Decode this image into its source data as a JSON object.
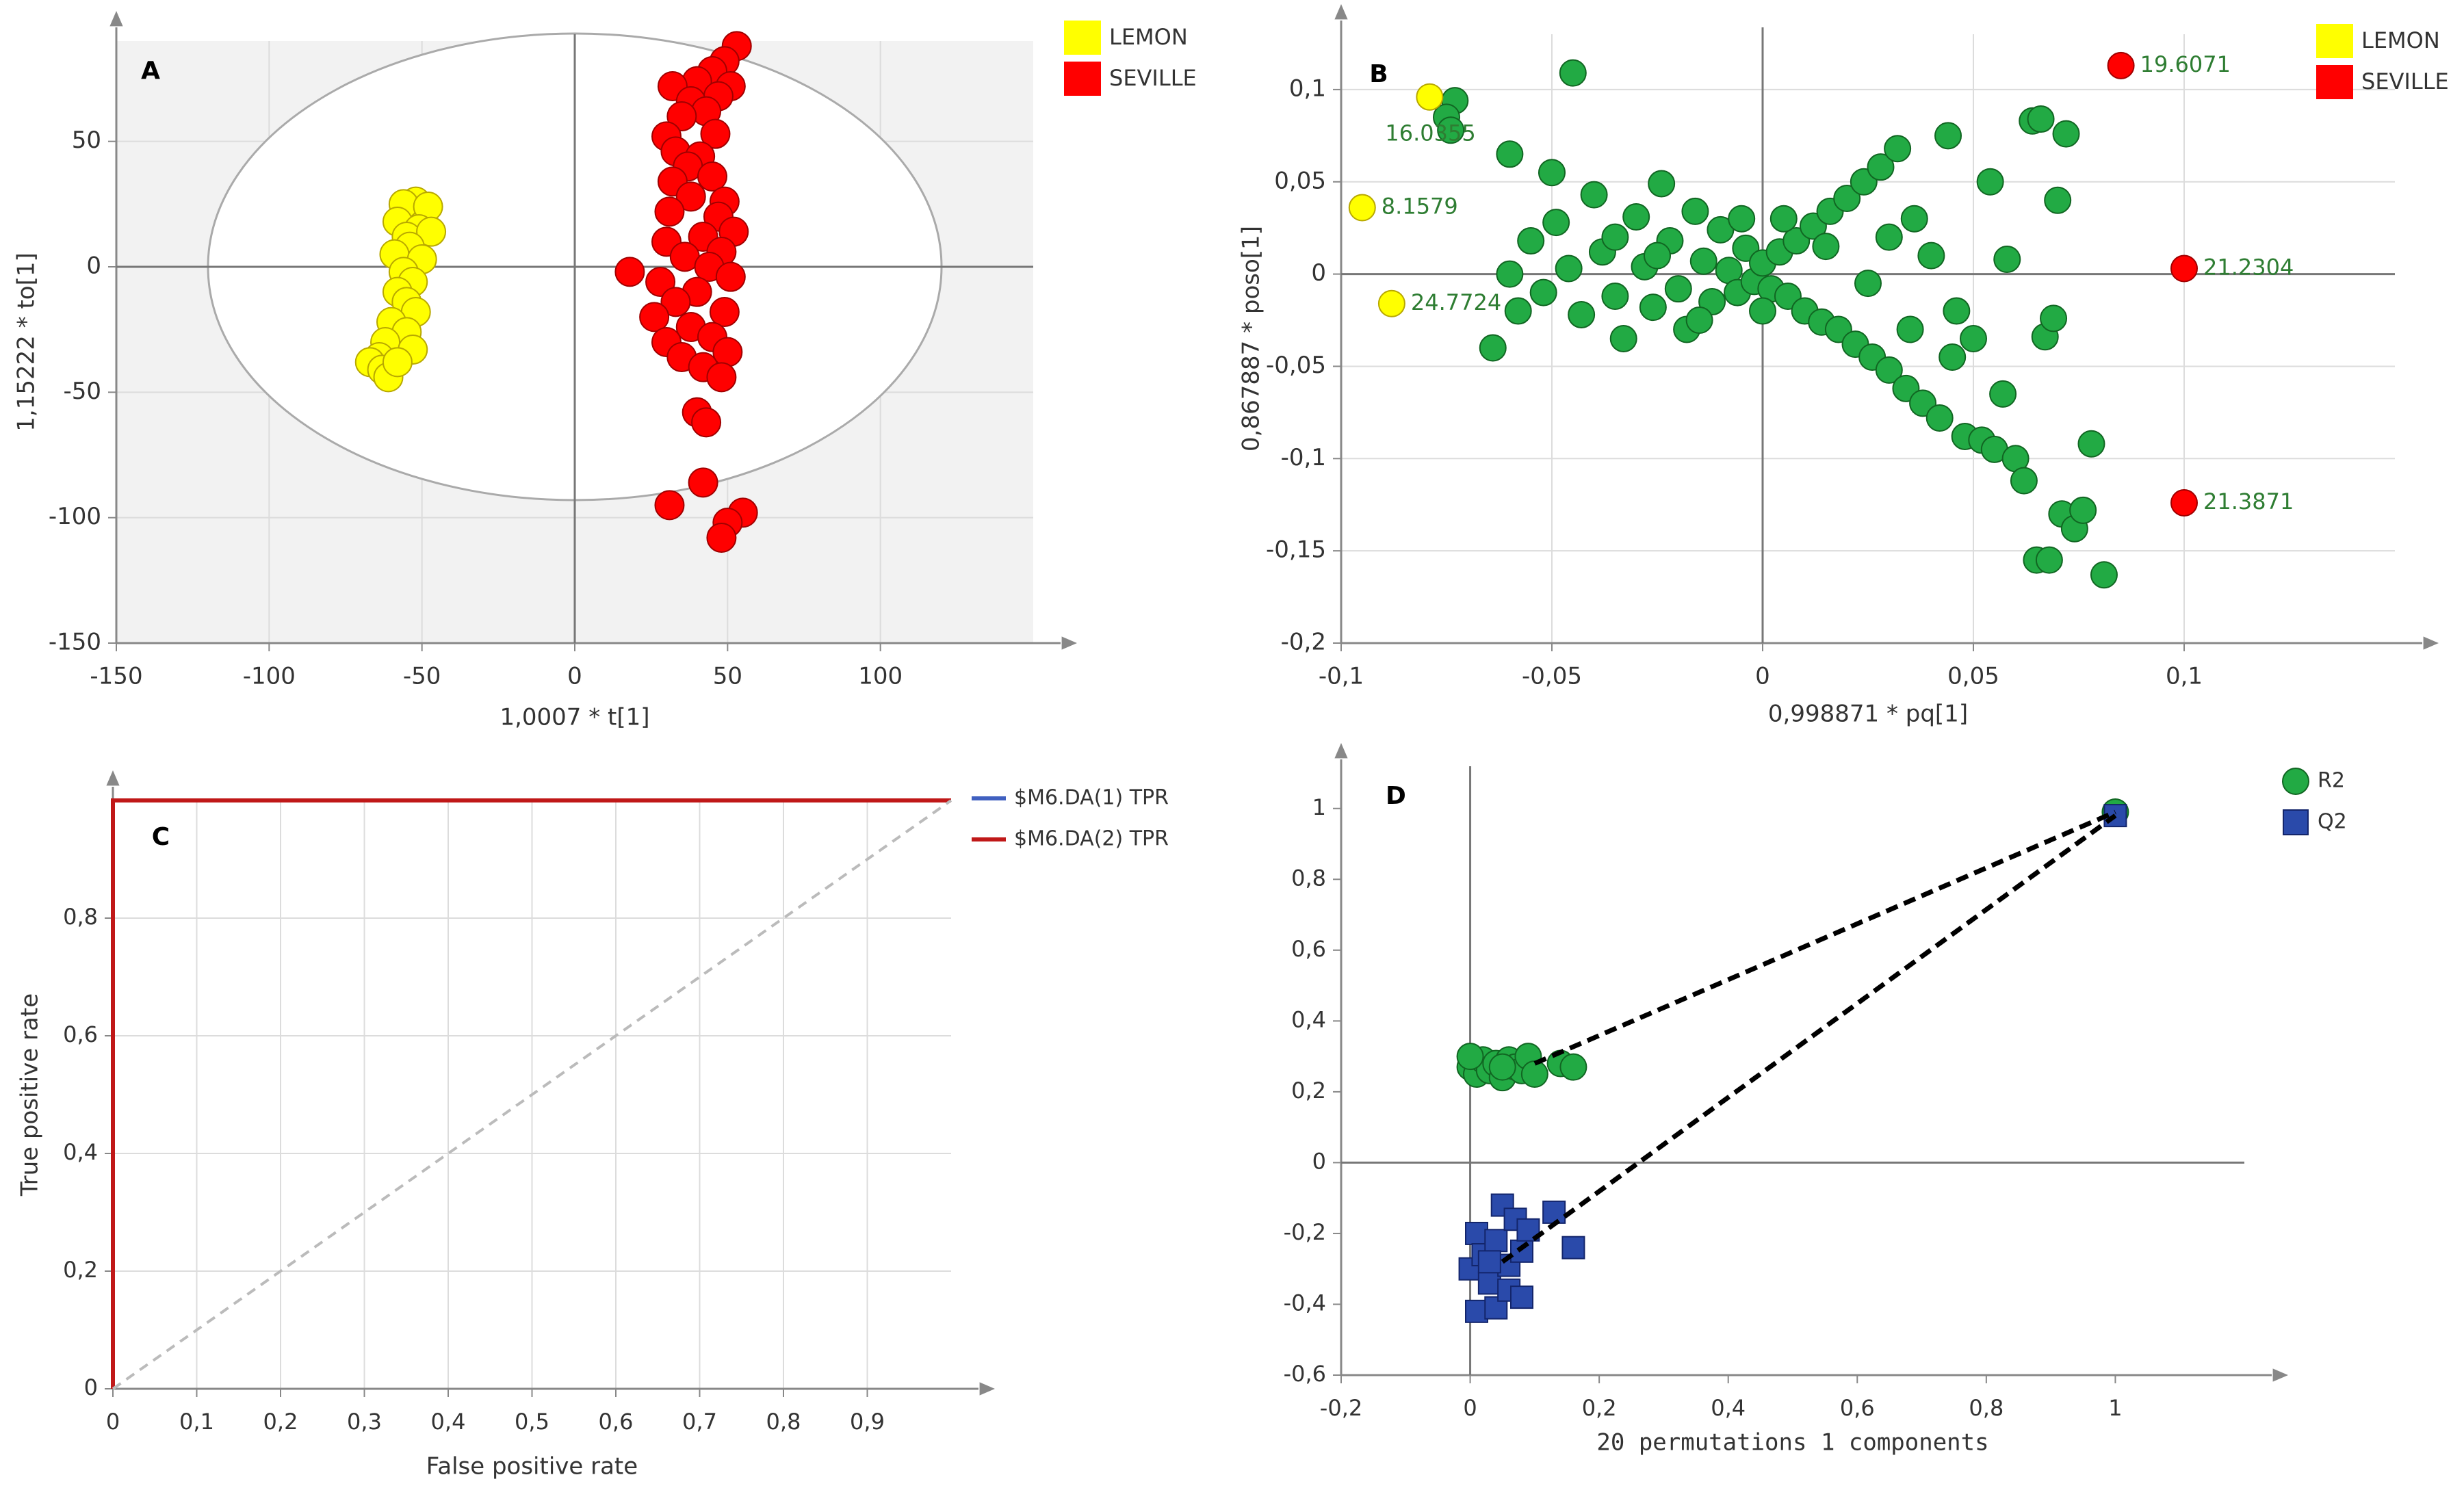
{
  "chart_data": [
    {
      "panel_letter": "A",
      "type": "scatter",
      "xlabel": "1,0007 * t[1]",
      "ylabel": "1,15222 * to[1]",
      "xlim": [
        -150,
        150
      ],
      "ylim": [
        -150,
        90
      ],
      "xticks": [
        "-150",
        "-100",
        "-50",
        "0",
        "50",
        "100"
      ],
      "xtick_values": [
        -150,
        -100,
        -50,
        0,
        50,
        100
      ],
      "yticks": [
        "-150",
        "-100",
        "-50",
        "0",
        "50"
      ],
      "ytick_values": [
        -150,
        -100,
        -50,
        0,
        50
      ],
      "grid": true,
      "ellipse": {
        "cx": 0,
        "cy": 0,
        "rx": 120,
        "ry": 93
      },
      "legend": [
        {
          "label": "LEMON",
          "color": "#ffff00"
        },
        {
          "label": "SEVILLE",
          "color": "#ff0000"
        }
      ],
      "series": [
        {
          "name": "LEMON",
          "color": "#ffff00",
          "points": [
            [
              -52,
              26
            ],
            [
              -56,
              25
            ],
            [
              -48,
              24
            ],
            [
              -58,
              18
            ],
            [
              -51,
              15
            ],
            [
              -55,
              12
            ],
            [
              -47,
              14
            ],
            [
              -54,
              8
            ],
            [
              -59,
              5
            ],
            [
              -50,
              3
            ],
            [
              -56,
              -2
            ],
            [
              -53,
              -6
            ],
            [
              -58,
              -10
            ],
            [
              -55,
              -14
            ],
            [
              -52,
              -18
            ],
            [
              -60,
              -22
            ],
            [
              -55,
              -26
            ],
            [
              -62,
              -30
            ],
            [
              -53,
              -33
            ],
            [
              -64,
              -36
            ],
            [
              -67,
              -38
            ],
            [
              -63,
              -41
            ],
            [
              -61,
              -44
            ],
            [
              -58,
              -38
            ]
          ]
        },
        {
          "name": "SEVILLE",
          "color": "#ff0000",
          "points": [
            [
              53,
              88
            ],
            [
              49,
              82
            ],
            [
              45,
              78
            ],
            [
              40,
              74
            ],
            [
              32,
              72
            ],
            [
              51,
              72
            ],
            [
              47,
              68
            ],
            [
              38,
              66
            ],
            [
              43,
              62
            ],
            [
              35,
              60
            ],
            [
              30,
              52
            ],
            [
              46,
              53
            ],
            [
              33,
              46
            ],
            [
              41,
              44
            ],
            [
              37,
              40
            ],
            [
              45,
              36
            ],
            [
              32,
              34
            ],
            [
              38,
              28
            ],
            [
              49,
              26
            ],
            [
              31,
              22
            ],
            [
              47,
              20
            ],
            [
              52,
              14
            ],
            [
              42,
              12
            ],
            [
              30,
              10
            ],
            [
              48,
              6
            ],
            [
              36,
              4
            ],
            [
              18,
              -2
            ],
            [
              44,
              0
            ],
            [
              51,
              -4
            ],
            [
              28,
              -6
            ],
            [
              40,
              -10
            ],
            [
              33,
              -14
            ],
            [
              49,
              -18
            ],
            [
              26,
              -20
            ],
            [
              38,
              -24
            ],
            [
              45,
              -28
            ],
            [
              30,
              -30
            ],
            [
              50,
              -34
            ],
            [
              35,
              -36
            ],
            [
              42,
              -40
            ],
            [
              48,
              -44
            ],
            [
              40,
              -58
            ],
            [
              43,
              -62
            ],
            [
              42,
              -86
            ],
            [
              31,
              -95
            ],
            [
              55,
              -98
            ],
            [
              50,
              -102
            ],
            [
              48,
              -108
            ]
          ]
        }
      ]
    },
    {
      "panel_letter": "B",
      "type": "scatter",
      "xlabel": "0,998871 * pq[1]",
      "ylabel": "0,867887 * poso[1]",
      "xlim": [
        -0.1,
        0.15
      ],
      "ylim": [
        -0.2,
        0.13
      ],
      "xticks": [
        "-0,1",
        "-0,05",
        "0",
        "0,05",
        "0,1"
      ],
      "xtick_values": [
        -0.1,
        -0.05,
        0,
        0.05,
        0.1
      ],
      "yticks": [
        "-0,2",
        "-0,15",
        "-0,1",
        "-0,05",
        "0",
        "0,05",
        "0,1"
      ],
      "ytick_values": [
        -0.2,
        -0.15,
        -0.1,
        -0.05,
        0,
        0.05,
        0.1
      ],
      "grid": true,
      "legend": [
        {
          "label": "LEMON",
          "color": "#ffff00"
        },
        {
          "label": "SEVILLE",
          "color": "#ff0000"
        }
      ],
      "highlighted_points": [
        {
          "x": -0.079,
          "y": 0.096,
          "color": "#ffff00",
          "label": "16.0355"
        },
        {
          "x": -0.095,
          "y": 0.036,
          "color": "#ffff00",
          "label": "8.1579"
        },
        {
          "x": -0.088,
          "y": -0.016,
          "color": "#ffff00",
          "label": "24.7724"
        },
        {
          "x": 0.085,
          "y": 0.113,
          "color": "#ff0000",
          "label": "19.6071"
        },
        {
          "x": 0.1,
          "y": 0.003,
          "color": "#ff0000",
          "label": "21.2304"
        },
        {
          "x": 0.1,
          "y": -0.124,
          "color": "#ff0000",
          "label": "21.3871"
        }
      ],
      "background_series": {
        "name": "loadings",
        "color": "#22aa44",
        "points": [
          [
            -0.073,
            0.094
          ],
          [
            -0.075,
            0.085
          ],
          [
            -0.074,
            0.078
          ],
          [
            -0.045,
            0.109
          ],
          [
            -0.06,
            0.065
          ],
          [
            -0.05,
            0.055
          ],
          [
            -0.064,
            -0.04
          ],
          [
            -0.06,
            0.0
          ],
          [
            -0.058,
            -0.02
          ],
          [
            -0.055,
            0.018
          ],
          [
            -0.052,
            -0.01
          ],
          [
            -0.049,
            0.028
          ],
          [
            -0.046,
            0.003
          ],
          [
            -0.043,
            -0.022
          ],
          [
            -0.04,
            0.043
          ],
          [
            -0.038,
            0.012
          ],
          [
            -0.035,
            -0.012
          ],
          [
            -0.033,
            -0.035
          ],
          [
            -0.03,
            0.031
          ],
          [
            -0.028,
            0.004
          ],
          [
            -0.026,
            -0.018
          ],
          [
            -0.024,
            0.049
          ],
          [
            -0.022,
            0.018
          ],
          [
            -0.02,
            -0.008
          ],
          [
            -0.018,
            -0.03
          ],
          [
            -0.016,
            0.034
          ],
          [
            -0.014,
            0.007
          ],
          [
            -0.012,
            -0.015
          ],
          [
            -0.01,
            0.024
          ],
          [
            -0.008,
            0.002
          ],
          [
            -0.006,
            -0.01
          ],
          [
            -0.004,
            0.014
          ],
          [
            -0.002,
            -0.004
          ],
          [
            0.0,
            0.006
          ],
          [
            0.002,
            -0.008
          ],
          [
            0.004,
            0.012
          ],
          [
            0.006,
            -0.012
          ],
          [
            0.008,
            0.018
          ],
          [
            0.01,
            -0.02
          ],
          [
            0.012,
            0.026
          ],
          [
            0.014,
            -0.026
          ],
          [
            0.016,
            0.034
          ],
          [
            0.018,
            -0.03
          ],
          [
            0.02,
            0.041
          ],
          [
            0.022,
            -0.038
          ],
          [
            0.024,
            0.05
          ],
          [
            0.026,
            -0.045
          ],
          [
            0.028,
            0.058
          ],
          [
            0.03,
            -0.052
          ],
          [
            0.032,
            0.068
          ],
          [
            0.034,
            -0.062
          ],
          [
            0.036,
            0.03
          ],
          [
            0.038,
            -0.07
          ],
          [
            0.04,
            0.01
          ],
          [
            0.042,
            -0.078
          ],
          [
            0.044,
            0.075
          ],
          [
            0.046,
            -0.02
          ],
          [
            0.048,
            -0.088
          ],
          [
            0.05,
            -0.035
          ],
          [
            0.052,
            -0.09
          ],
          [
            0.054,
            0.05
          ],
          [
            0.055,
            -0.095
          ],
          [
            0.057,
            -0.065
          ],
          [
            0.058,
            0.008
          ],
          [
            0.06,
            -0.1
          ],
          [
            0.062,
            -0.112
          ],
          [
            0.064,
            0.083
          ],
          [
            0.065,
            -0.155
          ],
          [
            0.066,
            0.084
          ],
          [
            0.067,
            -0.034
          ],
          [
            0.068,
            -0.155
          ],
          [
            0.069,
            -0.024
          ],
          [
            0.07,
            0.04
          ],
          [
            0.071,
            -0.13
          ],
          [
            0.072,
            0.076
          ],
          [
            0.074,
            -0.138
          ],
          [
            0.076,
            -0.128
          ],
          [
            0.078,
            -0.092
          ],
          [
            0.081,
            -0.163
          ],
          [
            0.0,
            -0.02
          ],
          [
            -0.005,
            0.03
          ],
          [
            0.005,
            0.03
          ],
          [
            -0.015,
            -0.025
          ],
          [
            0.015,
            0.015
          ],
          [
            0.025,
            -0.005
          ],
          [
            -0.025,
            0.01
          ],
          [
            0.035,
            -0.03
          ],
          [
            -0.035,
            0.02
          ],
          [
            0.045,
            -0.045
          ],
          [
            0.03,
            0.02
          ]
        ]
      }
    },
    {
      "panel_letter": "C",
      "type": "line",
      "xlabel": "False positive rate",
      "ylabel": "True positive rate",
      "xlim": [
        0,
        1
      ],
      "ylim": [
        0,
        1
      ],
      "xticks": [
        "0",
        "0,1",
        "0,2",
        "0,3",
        "0,4",
        "0,5",
        "0,6",
        "0,7",
        "0,8",
        "0,9"
      ],
      "xtick_values": [
        0,
        0.1,
        0.2,
        0.3,
        0.4,
        0.5,
        0.6,
        0.7,
        0.8,
        0.9
      ],
      "yticks": [
        "0",
        "0,2",
        "0,4",
        "0,6",
        "0,8"
      ],
      "ytick_values": [
        0,
        0.2,
        0.4,
        0.6,
        0.8
      ],
      "grid": true,
      "legend": [
        {
          "label": "$M6.DA(1) TPR",
          "color": "#4060c0"
        },
        {
          "label": "$M6.DA(2) TPR",
          "color": "#c01818"
        }
      ],
      "series": [
        {
          "name": "$M6.DA(1) TPR",
          "color": "#4060c0",
          "points": [
            [
              0,
              0
            ],
            [
              0,
              1
            ],
            [
              1,
              1
            ]
          ]
        },
        {
          "name": "$M6.DA(2) TPR",
          "color": "#c01818",
          "points": [
            [
              0,
              0
            ],
            [
              0,
              1
            ],
            [
              1,
              1
            ]
          ]
        },
        {
          "name": "reference",
          "color": "#bbbbbb",
          "dashed": true,
          "points": [
            [
              0,
              0
            ],
            [
              1,
              1
            ]
          ]
        }
      ]
    },
    {
      "panel_letter": "D",
      "type": "scatter",
      "xlabel": "20 permutations 1 components",
      "xlim": [
        -0.2,
        1.2
      ],
      "ylim": [
        -0.6,
        1.1
      ],
      "xticks": [
        "-0,2",
        "0",
        "0,2",
        "0,4",
        "0,6",
        "0,8",
        "1"
      ],
      "xtick_values": [
        -0.2,
        0,
        0.2,
        0.4,
        0.6,
        0.8,
        1
      ],
      "yticks": [
        "-0,6",
        "-0,4",
        "-0,2",
        "0",
        "0,2",
        "0,4",
        "0,6",
        "0,8",
        "1"
      ],
      "ytick_values": [
        -0.6,
        -0.4,
        -0.2,
        0,
        0.2,
        0.4,
        0.6,
        0.8,
        1
      ],
      "grid": false,
      "legend": [
        {
          "label": "R2",
          "color": "#22aa44",
          "marker": "circle"
        },
        {
          "label": "Q2",
          "color": "#2a4aaa",
          "marker": "square"
        }
      ],
      "series": [
        {
          "name": "R2",
          "color": "#22aa44",
          "marker": "circle",
          "points": [
            [
              0.0,
              0.27
            ],
            [
              0.01,
              0.25
            ],
            [
              0.02,
              0.29
            ],
            [
              0.03,
              0.26
            ],
            [
              0.04,
              0.28
            ],
            [
              0.05,
              0.24
            ],
            [
              0.06,
              0.29
            ],
            [
              0.07,
              0.27
            ],
            [
              0.08,
              0.26
            ],
            [
              0.09,
              0.3
            ],
            [
              0.1,
              0.25
            ],
            [
              0.0,
              0.3
            ],
            [
              0.05,
              0.27
            ],
            [
              0.14,
              0.28
            ],
            [
              0.16,
              0.27
            ],
            [
              1.0,
              0.99
            ]
          ]
        },
        {
          "name": "Q2",
          "color": "#2a4aaa",
          "marker": "square",
          "points": [
            [
              0.0,
              -0.3
            ],
            [
              0.01,
              -0.2
            ],
            [
              0.01,
              -0.42
            ],
            [
              0.02,
              -0.26
            ],
            [
              0.03,
              -0.34
            ],
            [
              0.04,
              -0.22
            ],
            [
              0.04,
              -0.41
            ],
            [
              0.05,
              -0.12
            ],
            [
              0.06,
              -0.29
            ],
            [
              0.06,
              -0.36
            ],
            [
              0.07,
              -0.16
            ],
            [
              0.08,
              -0.25
            ],
            [
              0.08,
              -0.38
            ],
            [
              0.09,
              -0.19
            ],
            [
              0.13,
              -0.14
            ],
            [
              0.16,
              -0.24
            ],
            [
              0.03,
              -0.28
            ],
            [
              1.0,
              0.98
            ]
          ]
        },
        {
          "name": "R2 regression",
          "color": "#000000",
          "dashed": true,
          "points": [
            [
              0.1,
              0.28
            ],
            [
              1.0,
              0.99
            ]
          ]
        },
        {
          "name": "Q2 regression",
          "color": "#000000",
          "dashed": true,
          "points": [
            [
              0.05,
              -0.28
            ],
            [
              1.0,
              0.98
            ]
          ]
        }
      ]
    }
  ]
}
